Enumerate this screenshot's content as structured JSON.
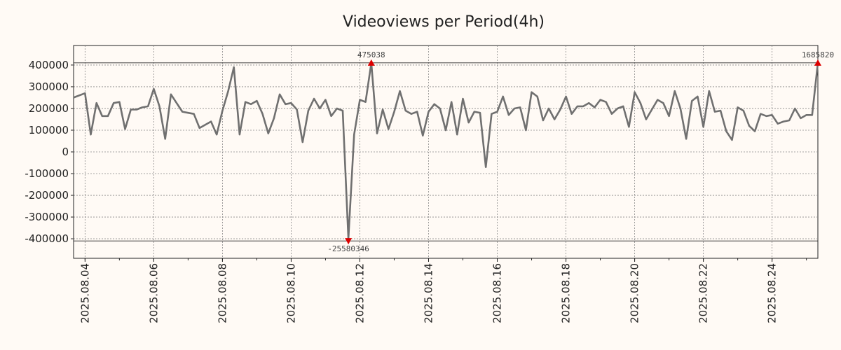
{
  "chart_data": {
    "type": "line",
    "title": "Videoviews per Period(4h)",
    "xlabel": "",
    "ylabel": "",
    "xlim": [
      "2025-08-03T16:00",
      "2025-08-25T08:00"
    ],
    "ylim": [
      -490000,
      490000
    ],
    "grid": true,
    "x_ticks": [
      "2025.08.04",
      "2025.08.06",
      "2025.08.08",
      "2025.08.10",
      "2025.08.12",
      "2025.08.14",
      "2025.08.16",
      "2025.08.18",
      "2025.08.20",
      "2025.08.22",
      "2025.08.24"
    ],
    "y_ticks": [
      400000,
      300000,
      200000,
      100000,
      0,
      -100000,
      -200000,
      -300000,
      -400000
    ],
    "y_tick_labels": [
      "400000",
      "300000",
      "200000",
      "100000",
      "0",
      "-100000",
      "-200000",
      "-300000",
      "-400000"
    ],
    "series_color": "#707070",
    "marker_color": "#dd0000",
    "series": [
      {
        "x": [
          "2025-08-03T16:00",
          "2025-08-04T00:00",
          "2025-08-04T04:00",
          "2025-08-04T08:00",
          "2025-08-04T12:00",
          "2025-08-04T16:00",
          "2025-08-04T20:00",
          "2025-08-05T00:00",
          "2025-08-05T04:00",
          "2025-08-05T08:00",
          "2025-08-05T12:00",
          "2025-08-05T16:00",
          "2025-08-05T20:00",
          "2025-08-06T00:00",
          "2025-08-06T04:00",
          "2025-08-06T08:00",
          "2025-08-06T12:00",
          "2025-08-06T16:00",
          "2025-08-06T20:00",
          "2025-08-07T00:00",
          "2025-08-07T04:00",
          "2025-08-07T08:00",
          "2025-08-07T12:00",
          "2025-08-07T16:00",
          "2025-08-07T20:00",
          "2025-08-08T00:00",
          "2025-08-08T04:00",
          "2025-08-08T08:00",
          "2025-08-08T12:00",
          "2025-08-08T16:00",
          "2025-08-08T20:00",
          "2025-08-09T00:00",
          "2025-08-09T04:00",
          "2025-08-09T08:00",
          "2025-08-09T12:00",
          "2025-08-09T16:00",
          "2025-08-09T20:00",
          "2025-08-10T00:00",
          "2025-08-10T04:00",
          "2025-08-10T08:00",
          "2025-08-10T12:00",
          "2025-08-10T16:00",
          "2025-08-10T20:00",
          "2025-08-11T00:00",
          "2025-08-11T04:00",
          "2025-08-11T08:00",
          "2025-08-11T12:00",
          "2025-08-11T16:00",
          "2025-08-11T20:00",
          "2025-08-12T00:00",
          "2025-08-12T04:00",
          "2025-08-12T08:00",
          "2025-08-12T12:00",
          "2025-08-12T16:00",
          "2025-08-12T20:00",
          "2025-08-13T00:00",
          "2025-08-13T04:00",
          "2025-08-13T08:00",
          "2025-08-13T12:00",
          "2025-08-13T16:00",
          "2025-08-13T20:00",
          "2025-08-14T00:00",
          "2025-08-14T04:00",
          "2025-08-14T08:00",
          "2025-08-14T12:00",
          "2025-08-14T16:00",
          "2025-08-14T20:00",
          "2025-08-15T00:00",
          "2025-08-15T04:00",
          "2025-08-15T08:00",
          "2025-08-15T12:00",
          "2025-08-15T16:00",
          "2025-08-15T20:00",
          "2025-08-16T00:00",
          "2025-08-16T04:00",
          "2025-08-16T08:00",
          "2025-08-16T12:00",
          "2025-08-16T16:00",
          "2025-08-16T20:00",
          "2025-08-17T00:00",
          "2025-08-17T04:00",
          "2025-08-17T08:00",
          "2025-08-17T12:00",
          "2025-08-17T16:00",
          "2025-08-17T20:00",
          "2025-08-18T00:00",
          "2025-08-18T04:00",
          "2025-08-18T08:00",
          "2025-08-18T12:00",
          "2025-08-18T16:00",
          "2025-08-18T20:00",
          "2025-08-19T00:00",
          "2025-08-19T04:00",
          "2025-08-19T08:00",
          "2025-08-19T12:00",
          "2025-08-19T16:00",
          "2025-08-19T20:00",
          "2025-08-20T00:00",
          "2025-08-20T04:00",
          "2025-08-20T08:00",
          "2025-08-20T12:00",
          "2025-08-20T16:00",
          "2025-08-20T20:00",
          "2025-08-21T00:00",
          "2025-08-21T04:00",
          "2025-08-21T08:00",
          "2025-08-21T12:00",
          "2025-08-21T16:00",
          "2025-08-21T20:00",
          "2025-08-22T00:00",
          "2025-08-22T04:00",
          "2025-08-22T08:00",
          "2025-08-22T12:00",
          "2025-08-22T16:00",
          "2025-08-22T20:00",
          "2025-08-23T00:00",
          "2025-08-23T04:00",
          "2025-08-23T08:00",
          "2025-08-23T12:00",
          "2025-08-23T16:00",
          "2025-08-23T20:00",
          "2025-08-24T00:00",
          "2025-08-24T04:00",
          "2025-08-24T08:00",
          "2025-08-24T12:00",
          "2025-08-24T16:00",
          "2025-08-24T20:00",
          "2025-08-25T00:00",
          "2025-08-25T04:00",
          "2025-08-25T08:00"
        ],
        "values": [
          250000,
          270000,
          80000,
          225000,
          165000,
          165000,
          225000,
          230000,
          105000,
          195000,
          195000,
          205000,
          210000,
          290000,
          210000,
          60000,
          265000,
          225000,
          185000,
          180000,
          175000,
          110000,
          125000,
          140000,
          80000,
          190000,
          280000,
          390000,
          80000,
          230000,
          220000,
          235000,
          175000,
          85000,
          155000,
          265000,
          220000,
          225000,
          195000,
          45000,
          190000,
          245000,
          200000,
          240000,
          165000,
          200000,
          190000,
          -400000,
          80000,
          240000,
          230000,
          410000,
          85000,
          195000,
          105000,
          185000,
          280000,
          190000,
          175000,
          185000,
          75000,
          185000,
          220000,
          200000,
          100000,
          230000,
          80000,
          245000,
          135000,
          185000,
          180000,
          -70000,
          175000,
          185000,
          255000,
          170000,
          200000,
          205000,
          100000,
          275000,
          255000,
          145000,
          200000,
          150000,
          195000,
          255000,
          175000,
          210000,
          210000,
          225000,
          205000,
          240000,
          230000,
          175000,
          200000,
          210000,
          115000,
          275000,
          225000,
          150000,
          195000,
          240000,
          225000,
          165000,
          280000,
          200000,
          60000,
          235000,
          255000,
          115000,
          280000,
          185000,
          190000,
          95000,
          55000,
          205000,
          190000,
          120000,
          95000,
          175000,
          165000,
          170000,
          130000,
          140000,
          145000,
          200000,
          155000,
          170000,
          170000,
          410000
        ]
      }
    ],
    "annotations": [
      {
        "label": "475038",
        "x": "2025-08-12T08:00",
        "y": 410000,
        "marker": "up-triangle",
        "text_position": "above"
      },
      {
        "label": "1685820",
        "x": "2025-08-25T08:00",
        "y": 410000,
        "marker": "up-triangle",
        "text_position": "above"
      },
      {
        "label": "-25580346",
        "x": "2025-08-11T16:00",
        "y": -410000,
        "marker": "down-triangle",
        "text_position": "below"
      }
    ],
    "reference_lines": [
      410000,
      -410000
    ]
  }
}
